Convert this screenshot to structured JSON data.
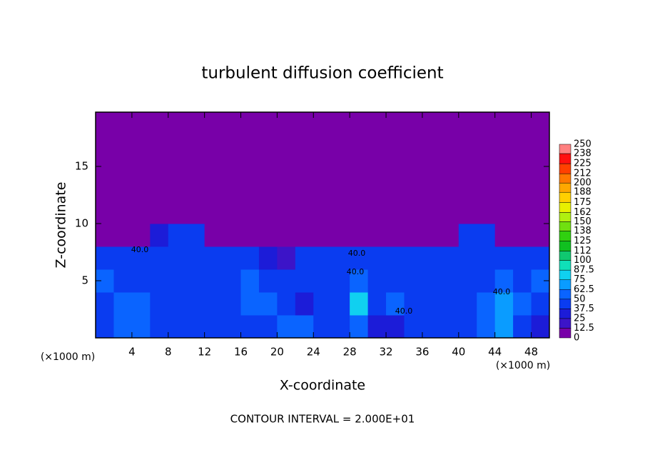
{
  "chart_data": {
    "type": "heatmap",
    "title": "turbulent diffusion coefficient",
    "x_label": "X-coordinate",
    "y_label": "Z-coordinate",
    "x_unit": "(×1000 m)",
    "x_unit_right": "(×1000 m)",
    "footer": "CONTOUR INTERVAL = 2.000E+01",
    "annotations": [
      "40.0",
      "40.0",
      "40.0",
      "40.0",
      "40.0"
    ],
    "xlim": [
      0,
      50
    ],
    "ylim": [
      0,
      19.75
    ],
    "xticks": [
      4,
      8,
      12,
      16,
      20,
      24,
      28,
      32,
      36,
      40,
      44,
      48
    ],
    "yticks": [
      5,
      10,
      15
    ],
    "x": [
      1,
      3,
      5,
      7,
      9,
      11,
      13,
      15,
      17,
      19,
      21,
      23,
      25,
      27,
      29,
      31,
      33,
      35,
      37,
      39,
      41,
      43,
      45,
      47,
      49
    ],
    "y": [
      1,
      3,
      5,
      7,
      9,
      11,
      13,
      15,
      17,
      19
    ],
    "z": [
      [
        38,
        55,
        62,
        45,
        40,
        45,
        48,
        42,
        45,
        40,
        60,
        58,
        45,
        40,
        50,
        35,
        30,
        45,
        40,
        42,
        40,
        55,
        68,
        45,
        30
      ],
      [
        45,
        58,
        50,
        42,
        45,
        42,
        45,
        44,
        58,
        62,
        40,
        30,
        42,
        48,
        75,
        45,
        55,
        42,
        44,
        46,
        45,
        60,
        70,
        52,
        45
      ],
      [
        50,
        42,
        45,
        40,
        45,
        44,
        46,
        45,
        50,
        48,
        40,
        38,
        45,
        45,
        62,
        45,
        48,
        45,
        46,
        45,
        44,
        48,
        55,
        45,
        50
      ],
      [
        45,
        40,
        45,
        42,
        44,
        45,
        44,
        42,
        40,
        30,
        20,
        40,
        45,
        42,
        40,
        45,
        40,
        44,
        42,
        45,
        45,
        44,
        45,
        42,
        40
      ],
      [
        0,
        0,
        0,
        35,
        40,
        38,
        0,
        0,
        0,
        0,
        0,
        0,
        0,
        0,
        0,
        0,
        0,
        0,
        0,
        0,
        40,
        38,
        0,
        0,
        0
      ],
      [
        0,
        0,
        0,
        0,
        0,
        0,
        0,
        0,
        0,
        0,
        0,
        0,
        0,
        0,
        0,
        0,
        0,
        0,
        0,
        0,
        0,
        0,
        0,
        0,
        0
      ],
      [
        0,
        0,
        0,
        0,
        0,
        0,
        0,
        0,
        0,
        0,
        0,
        0,
        0,
        0,
        0,
        0,
        0,
        0,
        0,
        0,
        0,
        0,
        0,
        0,
        0
      ],
      [
        0,
        0,
        0,
        0,
        0,
        0,
        0,
        0,
        0,
        0,
        0,
        0,
        0,
        0,
        0,
        0,
        0,
        0,
        0,
        0,
        0,
        0,
        0,
        0,
        0
      ],
      [
        0,
        0,
        0,
        0,
        0,
        0,
        0,
        0,
        0,
        0,
        0,
        0,
        0,
        0,
        0,
        0,
        0,
        0,
        0,
        0,
        0,
        0,
        0,
        0,
        0
      ],
      [
        0,
        0,
        0,
        0,
        0,
        0,
        0,
        0,
        0,
        0,
        0,
        0,
        0,
        0,
        0,
        0,
        0,
        0,
        0,
        0,
        0,
        0,
        0,
        0,
        0
      ]
    ],
    "levels": [
      0,
      12.5,
      25,
      37.5,
      50,
      62.5,
      75,
      87.5,
      100,
      112,
      125,
      138,
      150,
      162,
      175,
      188,
      200,
      212,
      225,
      238,
      250
    ],
    "colors": [
      "#7800a8",
      "#3c14c8",
      "#1c1cd8",
      "#0a3cf0",
      "#0a64ff",
      "#0a9cff",
      "#10d0f0",
      "#10e0b8",
      "#10c870",
      "#10c020",
      "#30d010",
      "#70e010",
      "#b0f010",
      "#e8f000",
      "#ffd000",
      "#ffa800",
      "#ff7800",
      "#ff4000",
      "#ff1010",
      "#ff8080"
    ]
  }
}
